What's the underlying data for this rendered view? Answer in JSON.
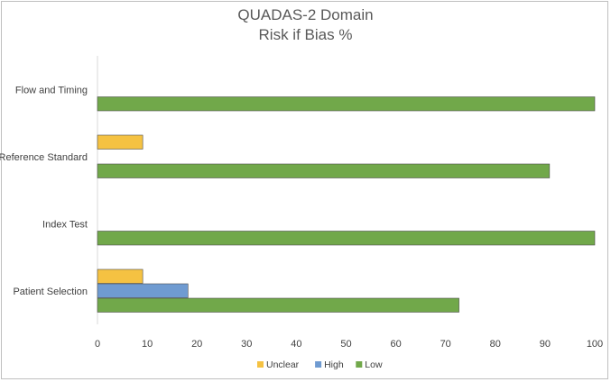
{
  "chart_data": {
    "type": "bar",
    "orientation": "horizontal",
    "title": "QUADAS-2 Domain",
    "subtitle": "Risk if Bias %",
    "categories": [
      "Patient Selection",
      "Index Test",
      "Reference Standard",
      "Flow and Timing"
    ],
    "series": [
      {
        "name": "Unclear",
        "color": "#f5c242",
        "values": [
          9.1,
          0,
          9.1,
          0
        ]
      },
      {
        "name": "High",
        "color": "#6f9bd1",
        "values": [
          18.2,
          0,
          0,
          0
        ]
      },
      {
        "name": "Low",
        "color": "#71a84a",
        "values": [
          72.7,
          100,
          90.9,
          100
        ]
      }
    ],
    "xlim": [
      0,
      100
    ],
    "xticks": [
      "0",
      "10",
      "20",
      "30",
      "40",
      "50",
      "60",
      "70",
      "80",
      "90",
      "100"
    ],
    "grid": false,
    "legend_position": "bottom"
  }
}
